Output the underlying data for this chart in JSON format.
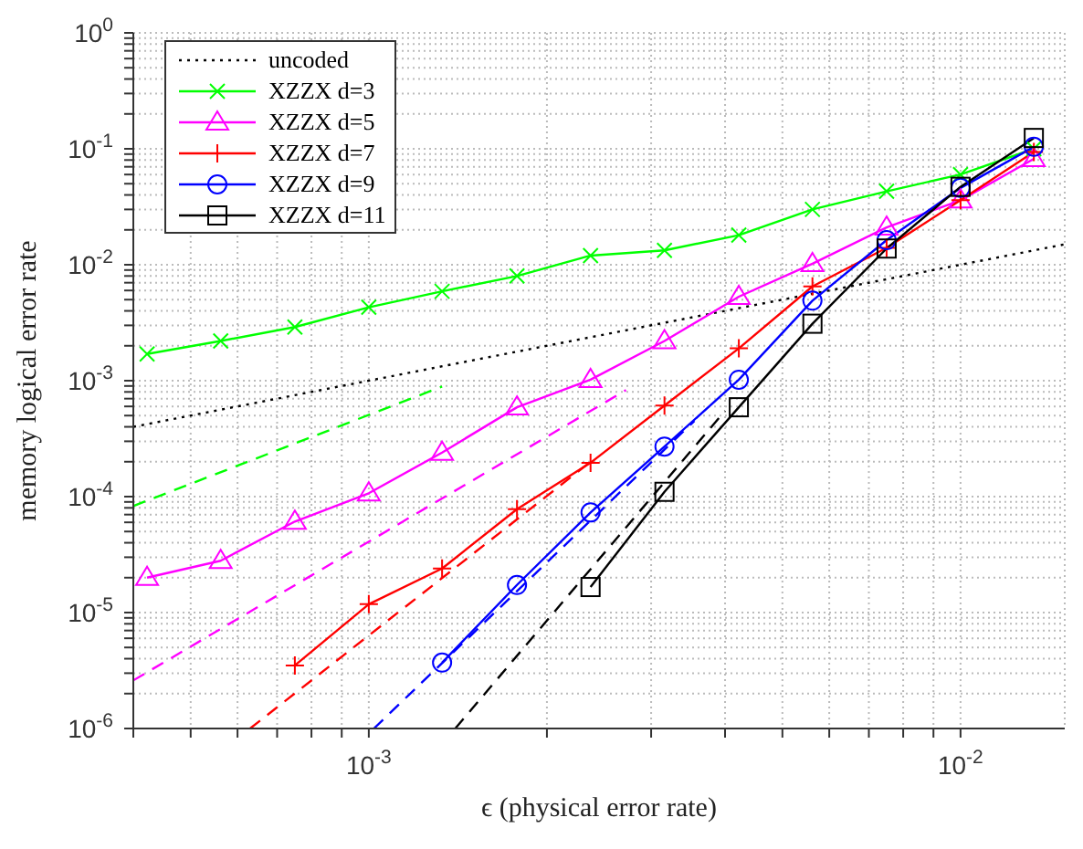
{
  "chart_data": {
    "type": "line",
    "xlabel": "ϵ (physical error rate)",
    "ylabel": "memory logical error rate",
    "log": "xy",
    "grid": true,
    "legend": "top left",
    "xlim": [
      0.0004,
      0.015
    ],
    "ylim": [
      1e-06,
      1
    ],
    "xticks": [
      {
        "value": 0.0004,
        "label": null
      },
      {
        "value": 0.0005,
        "label": null
      },
      {
        "value": 0.0006,
        "label": null
      },
      {
        "value": 0.0007,
        "label": null
      },
      {
        "value": 0.0008,
        "label": null
      },
      {
        "value": 0.0009,
        "label": null
      },
      {
        "value": 0.001,
        "label": "10$^{-3}$"
      },
      {
        "value": 0.002,
        "label": null
      },
      {
        "value": 0.003,
        "label": null
      },
      {
        "value": 0.004,
        "label": null
      },
      {
        "value": 0.005,
        "label": null
      },
      {
        "value": 0.006,
        "label": null
      },
      {
        "value": 0.007,
        "label": null
      },
      {
        "value": 0.008,
        "label": null
      },
      {
        "value": 0.009,
        "label": null
      },
      {
        "value": 0.01,
        "label": "10$^{-2}$"
      }
    ],
    "yticks": [
      {
        "value": 1e-06,
        "label": "10$^{-6}$"
      },
      {
        "value": 2e-06,
        "label": null
      },
      {
        "value": 3e-06,
        "label": null
      },
      {
        "value": 4e-06,
        "label": null
      },
      {
        "value": 5e-06,
        "label": null
      },
      {
        "value": 6e-06,
        "label": null
      },
      {
        "value": 7e-06,
        "label": null
      },
      {
        "value": 8e-06,
        "label": null
      },
      {
        "value": 9e-06,
        "label": null
      },
      {
        "value": 1e-05,
        "label": "10$^{-5}$"
      },
      {
        "value": 2e-05,
        "label": null
      },
      {
        "value": 3e-05,
        "label": null
      },
      {
        "value": 4e-05,
        "label": null
      },
      {
        "value": 5e-05,
        "label": null
      },
      {
        "value": 6e-05,
        "label": null
      },
      {
        "value": 7e-05,
        "label": null
      },
      {
        "value": 8e-05,
        "label": null
      },
      {
        "value": 9e-05,
        "label": null
      },
      {
        "value": 0.0001,
        "label": "10$^{-4}$"
      },
      {
        "value": 0.0002,
        "label": null
      },
      {
        "value": 0.0003,
        "label": null
      },
      {
        "value": 0.0004,
        "label": null
      },
      {
        "value": 0.0005,
        "label": null
      },
      {
        "value": 0.0006,
        "label": null
      },
      {
        "value": 0.0007,
        "label": null
      },
      {
        "value": 0.0008,
        "label": null
      },
      {
        "value": 0.0009,
        "label": null
      },
      {
        "value": 0.001,
        "label": "10$^{-3}$"
      },
      {
        "value": 0.002,
        "label": null
      },
      {
        "value": 0.003,
        "label": null
      },
      {
        "value": 0.004,
        "label": null
      },
      {
        "value": 0.005,
        "label": null
      },
      {
        "value": 0.006,
        "label": null
      },
      {
        "value": 0.007,
        "label": null
      },
      {
        "value": 0.008,
        "label": null
      },
      {
        "value": 0.009,
        "label": null
      },
      {
        "value": 0.01,
        "label": "10$^{-2}$"
      },
      {
        "value": 0.02,
        "label": null
      },
      {
        "value": 0.03,
        "label": null
      },
      {
        "value": 0.04,
        "label": null
      },
      {
        "value": 0.05,
        "label": null
      },
      {
        "value": 0.06,
        "label": null
      },
      {
        "value": 0.07,
        "label": null
      },
      {
        "value": 0.08,
        "label": null
      },
      {
        "value": 0.09,
        "label": null
      },
      {
        "value": 0.1,
        "label": "10$^{-1}$"
      },
      {
        "value": 0.2,
        "label": null
      },
      {
        "value": 0.3,
        "label": null
      },
      {
        "value": 0.4,
        "label": null
      },
      {
        "value": 0.5,
        "label": null
      },
      {
        "value": 0.6,
        "label": null
      },
      {
        "value": 0.7,
        "label": null
      },
      {
        "value": 0.8,
        "label": null
      },
      {
        "value": 0.9,
        "label": null
      },
      {
        "value": 1,
        "label": "10$^{0}$"
      }
    ],
    "series": [
      {
        "name": "uncoded",
        "color": "#000000",
        "line_style": "dotted",
        "marker": "none",
        "x": [
          0.0004,
          0.015
        ],
        "values": [
          0.0004,
          0.015
        ]
      },
      {
        "name": "XZZX d=3",
        "color": "#00ff00",
        "line_style": "solid",
        "marker": "cross",
        "x": [
          0.000422,
          0.000562,
          0.00075,
          0.001,
          0.00133,
          0.00178,
          0.00237,
          0.00316,
          0.00422,
          0.00562,
          0.0075,
          0.01,
          0.0133
        ],
        "values": [
          0.0017,
          0.0022,
          0.0029,
          0.0043,
          0.0059,
          0.008,
          0.012,
          0.0133,
          0.018,
          0.03,
          0.043,
          0.06,
          0.1
        ]
      },
      {
        "name": "XZZX d=5",
        "color": "#ff00ff",
        "line_style": "solid",
        "marker": "triangle",
        "x": [
          0.000422,
          0.000562,
          0.00075,
          0.001,
          0.00133,
          0.00178,
          0.00237,
          0.00316,
          0.00422,
          0.00562,
          0.0075,
          0.01,
          0.0133
        ],
        "values": [
          2e-05,
          2.8e-05,
          6.1e-05,
          0.000107,
          0.00024,
          0.00059,
          0.00102,
          0.0022,
          0.0053,
          0.0102,
          0.021,
          0.036,
          0.082
        ]
      },
      {
        "name": "XZZX d=7",
        "color": "#ff0000",
        "line_style": "solid",
        "marker": "plus",
        "x": [
          0.00075,
          0.001,
          0.00133,
          0.00178,
          0.00237,
          0.00316,
          0.00422,
          0.00562,
          0.0075,
          0.01,
          0.0133
        ],
        "values": [
          3.5e-06,
          1.18e-05,
          2.4e-05,
          7.8e-05,
          0.000196,
          0.00061,
          0.0019,
          0.0065,
          0.014,
          0.036,
          0.094
        ]
      },
      {
        "name": "XZZX d=9",
        "color": "#0000ff",
        "line_style": "solid",
        "marker": "circle",
        "x": [
          0.00133,
          0.00178,
          0.00237,
          0.00316,
          0.00422,
          0.00562,
          0.0075,
          0.01,
          0.0133
        ],
        "values": [
          3.7e-06,
          1.73e-05,
          7.3e-05,
          0.00027,
          0.00102,
          0.0049,
          0.0163,
          0.046,
          0.104
        ]
      },
      {
        "name": "XZZX d=11",
        "color": "#000000",
        "line_style": "solid",
        "marker": "square",
        "x": [
          0.00237,
          0.00316,
          0.00422,
          0.00562,
          0.0075,
          0.01,
          0.0133
        ],
        "values": [
          1.66e-05,
          0.00011,
          0.00059,
          0.0031,
          0.0138,
          0.047,
          0.124
        ]
      },
      {
        "color": "#00ff00",
        "line_style": "dashed",
        "marker": "none",
        "x": [
          0.0004,
          0.00133
        ],
        "values": [
          8.3e-05,
          0.00089
        ]
      },
      {
        "color": "#ff00ff",
        "line_style": "dashed",
        "marker": "none",
        "x": [
          0.0004,
          0.00272
        ],
        "values": [
          2.6e-06,
          0.00083
        ]
      },
      {
        "color": "#ff0000",
        "line_style": "dashed",
        "marker": "none",
        "x": [
          0.00063,
          0.00237
        ],
        "values": [
          1e-06,
          0.0002
        ]
      },
      {
        "color": "#0000ff",
        "line_style": "dashed",
        "marker": "none",
        "x": [
          0.00102,
          0.00355
        ],
        "values": [
          1e-06,
          0.00045
        ]
      },
      {
        "color": "#000000",
        "line_style": "dashed",
        "marker": "none",
        "x": [
          0.0014,
          0.004
        ],
        "values": [
          1e-06,
          0.00055
        ]
      }
    ]
  }
}
